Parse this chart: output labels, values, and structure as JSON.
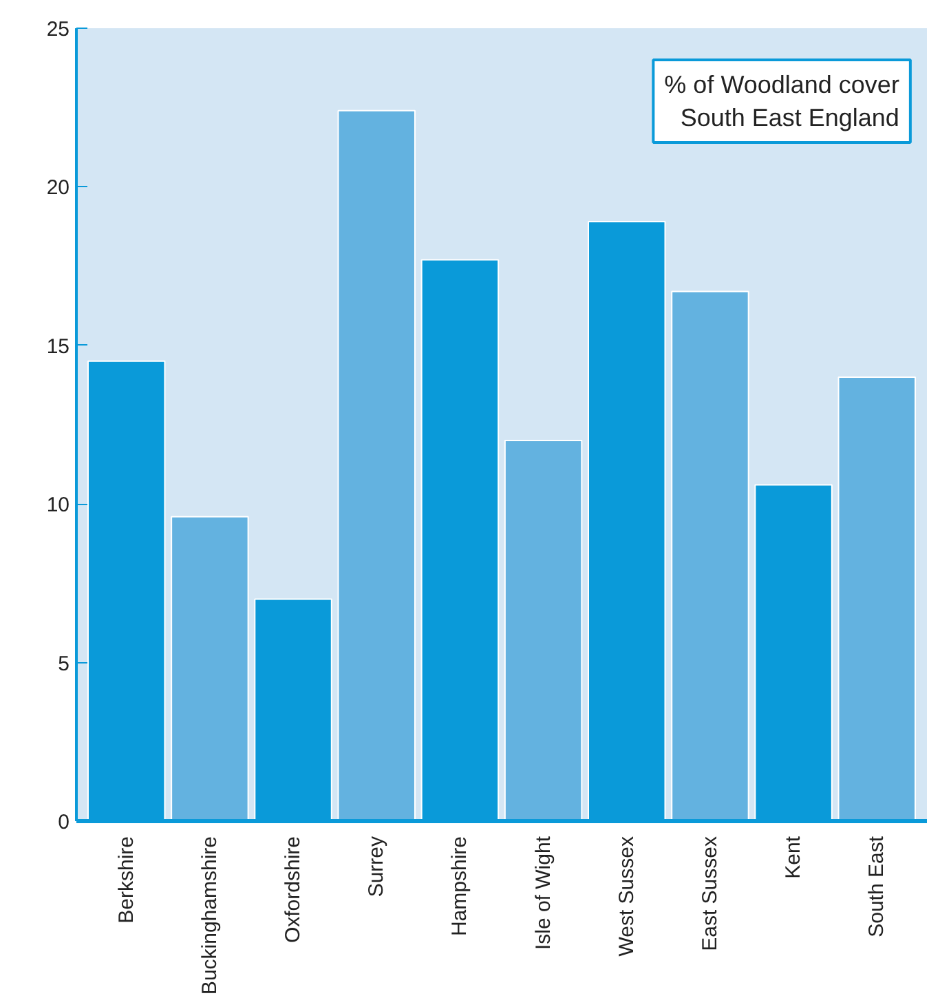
{
  "chart_data": {
    "type": "bar",
    "title": "% of Woodland cover\nSouth East England",
    "categories": [
      "Berkshire",
      "Buckinghamshire",
      "Oxfordshire",
      "Surrey",
      "Hampshire",
      "Isle of Wight",
      "West Sussex",
      "East Sussex",
      "Kent",
      "South East"
    ],
    "values": [
      14.5,
      9.6,
      7.0,
      22.4,
      17.7,
      12.0,
      18.9,
      16.7,
      10.6,
      14.0
    ],
    "colors": [
      "#0a9ad9",
      "#63b2e0",
      "#0a9ad9",
      "#63b2e0",
      "#0a9ad9",
      "#63b2e0",
      "#0a9ad9",
      "#63b2e0",
      "#0a9ad9",
      "#63b2e0"
    ],
    "ylim": [
      0,
      25
    ],
    "yticks": [
      0,
      5,
      10,
      15,
      20,
      25
    ],
    "grid": false
  }
}
